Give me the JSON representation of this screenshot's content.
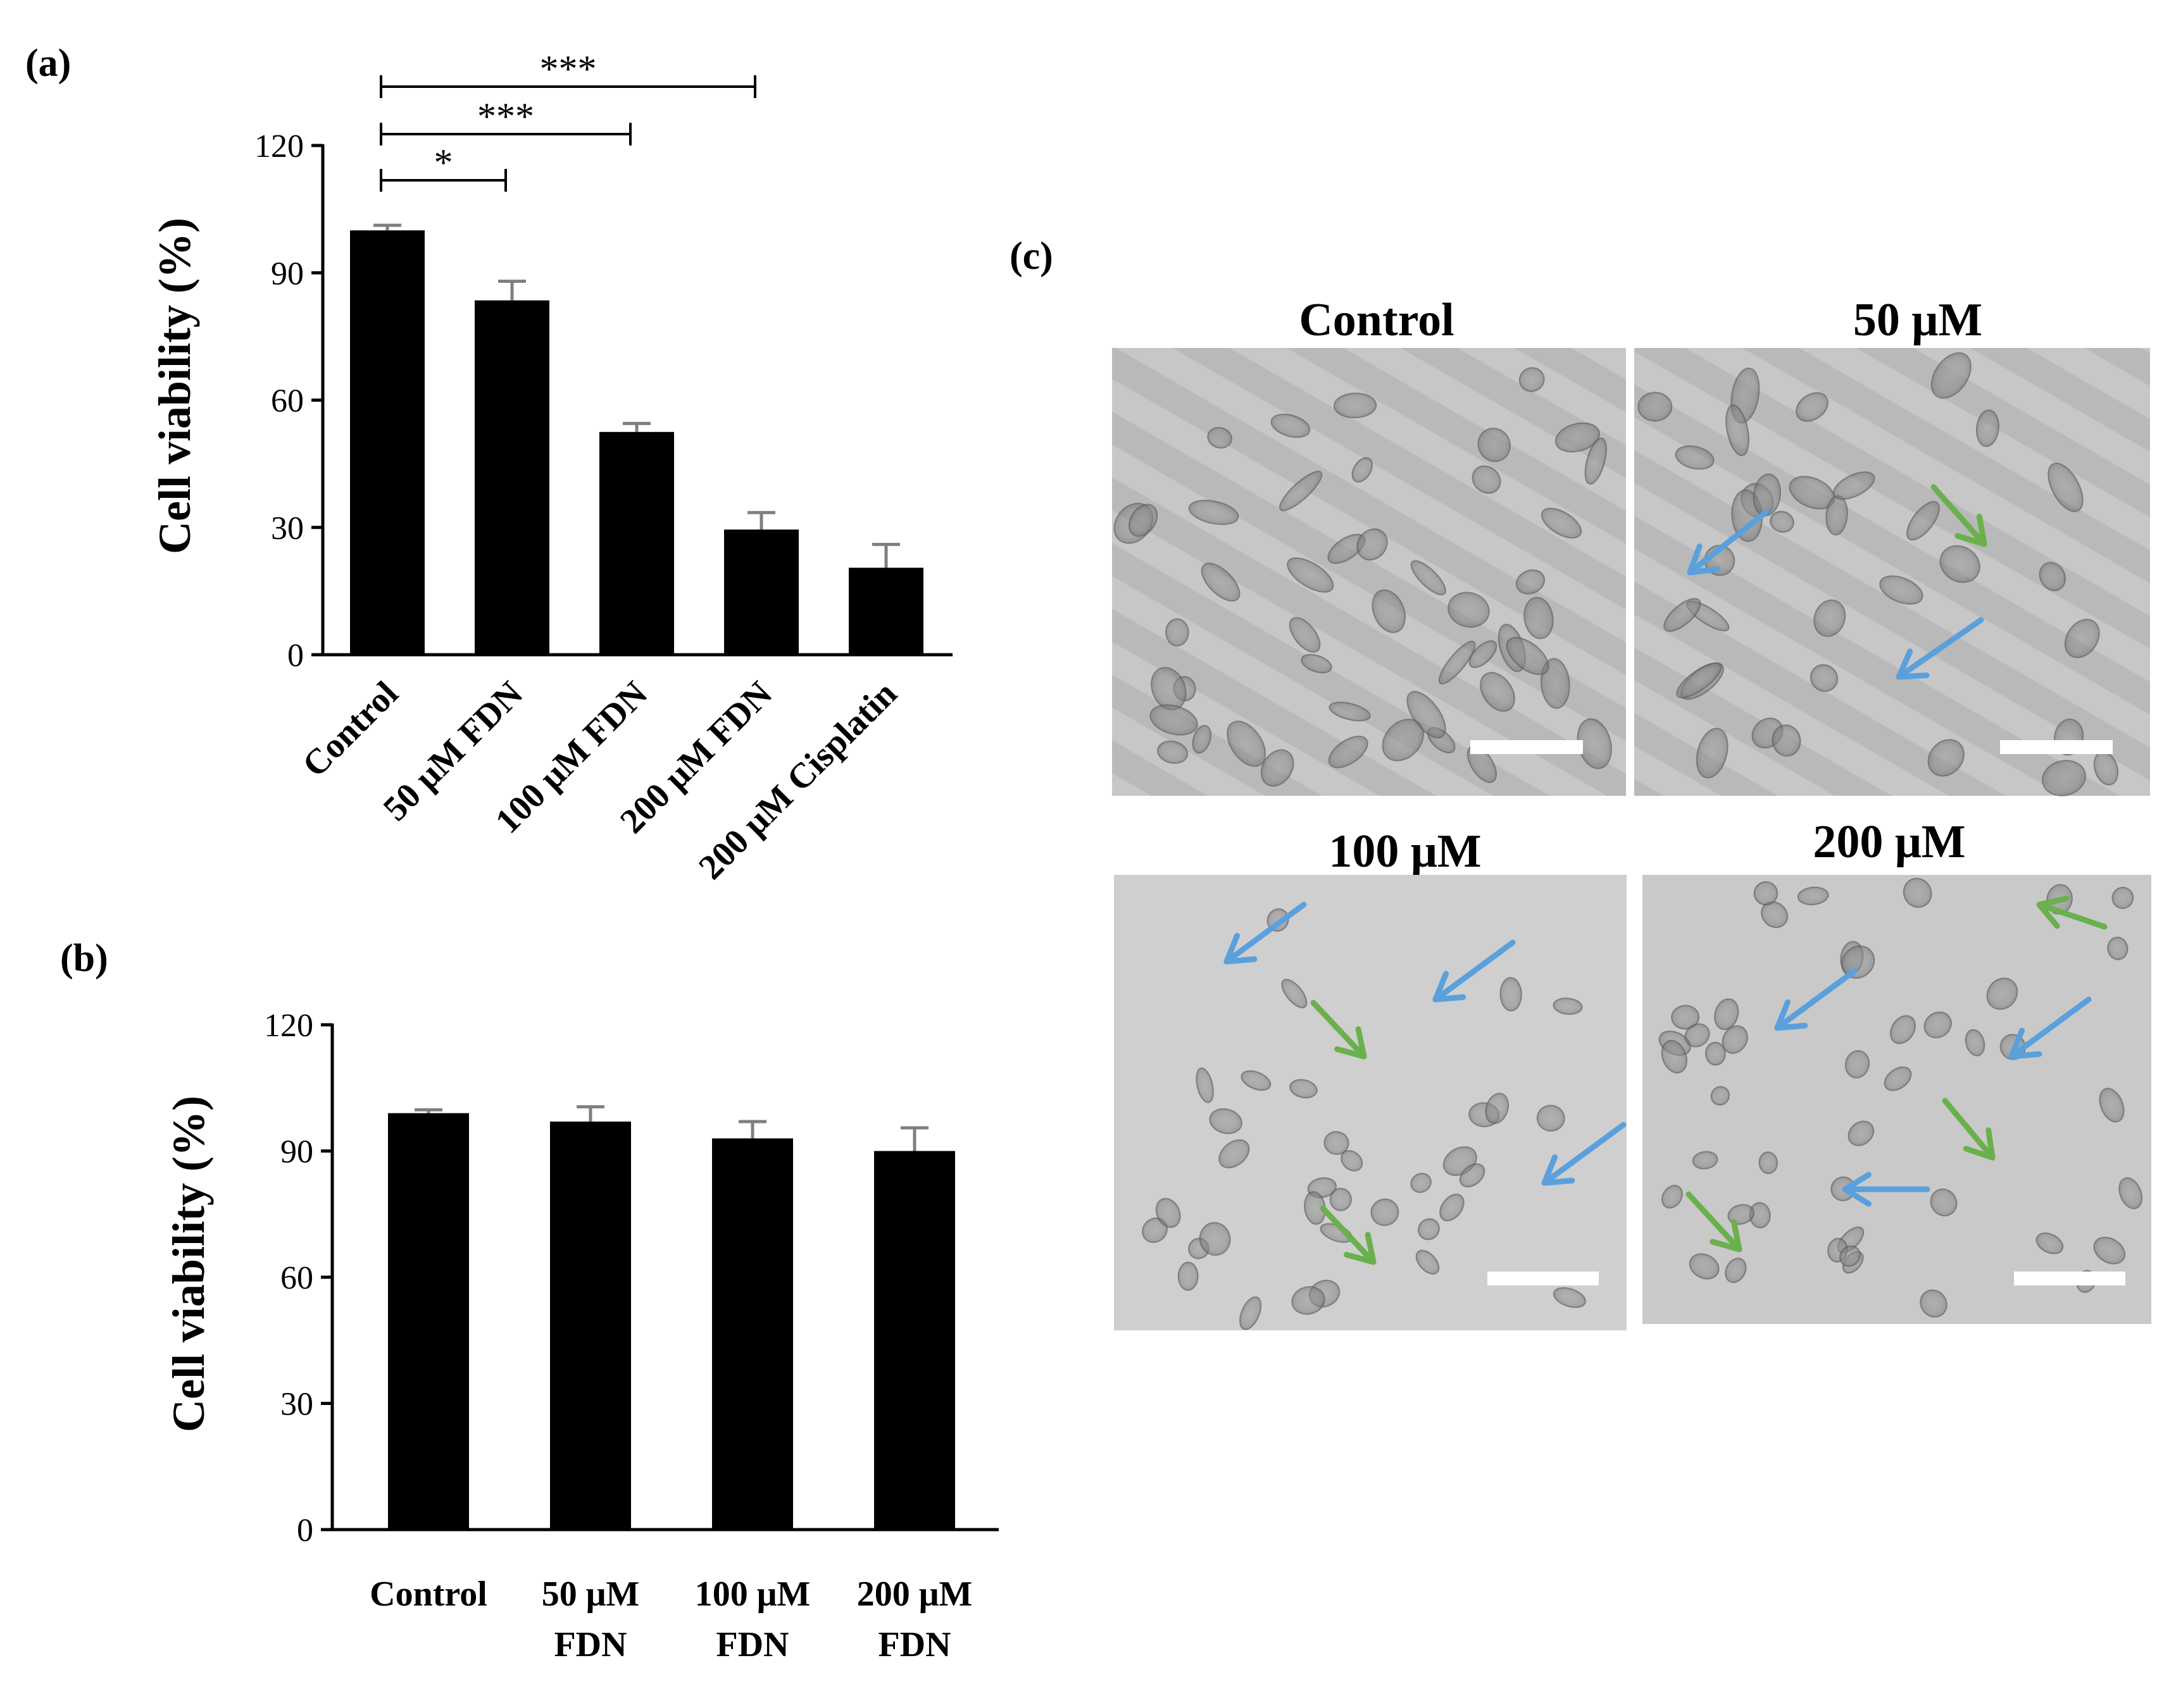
{
  "panels": {
    "a": "(a)",
    "b": "(b)",
    "c": "(c)"
  },
  "chart_data": [
    {
      "type": "bar",
      "panel": "(a)",
      "categories": [
        "Control",
        "50 μM FDN",
        "100 μM FDN",
        "200 μM FDN",
        "200 μM Cisplatin"
      ],
      "values": [
        100,
        83.5,
        52.5,
        29.5,
        20.5
      ],
      "errors": [
        1.2,
        4.5,
        2.0,
        4.0,
        5.5
      ],
      "ylabel": "Cell viability (%)",
      "ylim": [
        0,
        120
      ],
      "yticks": [
        "0",
        "30",
        "60",
        "90",
        "120"
      ],
      "bar_color": "#000000",
      "grid": false,
      "significance": [
        {
          "from": 0,
          "to": 1,
          "label": "*"
        },
        {
          "from": 0,
          "to": 2,
          "label": "***"
        },
        {
          "from": 0,
          "to": 3,
          "label": "***"
        }
      ]
    },
    {
      "type": "bar",
      "panel": "(b)",
      "categories": [
        [
          "Control"
        ],
        [
          "50 μM",
          "FDN"
        ],
        [
          "100 μM",
          "FDN"
        ],
        [
          "200 μM",
          "FDN"
        ]
      ],
      "values": [
        99,
        97,
        93,
        90
      ],
      "errors": [
        0.8,
        3.5,
        4.0,
        5.5
      ],
      "ylabel": "Cell viability (%)",
      "ylim": [
        0,
        120
      ],
      "yticks": [
        "0",
        "30",
        "60",
        "90",
        "120"
      ],
      "bar_color": "#000000",
      "grid": false
    }
  ],
  "micrographs": {
    "titles": [
      "Control",
      "50 μM",
      "100 μM",
      "200 μM"
    ],
    "arrow_colors": {
      "blue": "#5aa0dc",
      "green": "#6ab04c"
    },
    "scale_bar_color": "#ffffff"
  }
}
